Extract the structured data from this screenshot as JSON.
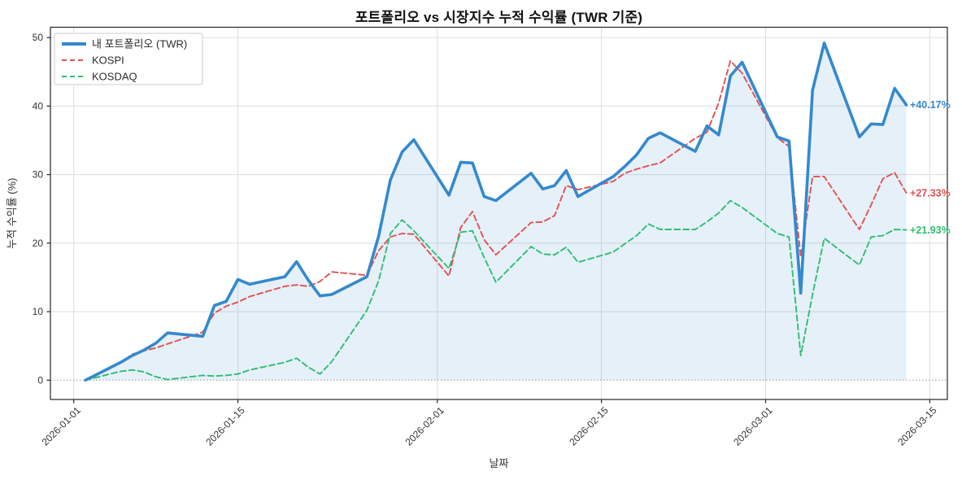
{
  "title": "포트폴리오 vs 시장지수 누적 수익률 (TWR 기준)",
  "chart_data": {
    "type": "line",
    "title": "포트폴리오 vs 시장지수 누적 수익률 (TWR 기준)",
    "xlabel": "날짜",
    "ylabel": "누적 수익률 (%)",
    "yticks": [
      0,
      10,
      20,
      30,
      40,
      50
    ],
    "ylim": [
      -2.8,
      51.5
    ],
    "xticks": [
      "2026-01-01",
      "2026-01-15",
      "2026-02-01",
      "2026-02-15",
      "2026-03-01",
      "2026-03-15"
    ],
    "grid": true,
    "zero_line_dotted": true,
    "legend_position": "upper-left",
    "x": [
      "2026-01-02",
      "2026-01-05",
      "2026-01-06",
      "2026-01-07",
      "2026-01-08",
      "2026-01-09",
      "2026-01-12",
      "2026-01-13",
      "2026-01-14",
      "2026-01-15",
      "2026-01-16",
      "2026-01-19",
      "2026-01-20",
      "2026-01-21",
      "2026-01-22",
      "2026-01-23",
      "2026-01-26",
      "2026-01-27",
      "2026-01-28",
      "2026-01-29",
      "2026-01-30",
      "2026-02-02",
      "2026-02-03",
      "2026-02-04",
      "2026-02-05",
      "2026-02-06",
      "2026-02-09",
      "2026-02-10",
      "2026-02-11",
      "2026-02-12",
      "2026-02-13",
      "2026-02-16",
      "2026-02-17",
      "2026-02-18",
      "2026-02-19",
      "2026-02-20",
      "2026-02-23",
      "2026-02-24",
      "2026-02-25",
      "2026-02-26",
      "2026-02-27",
      "2026-03-02",
      "2026-03-03",
      "2026-03-04",
      "2026-03-05",
      "2026-03-06",
      "2026-03-09",
      "2026-03-10",
      "2026-03-11",
      "2026-03-12",
      "2026-03-13"
    ],
    "series": [
      {
        "name": "내 포트폴리오 (TWR)",
        "color": "#3489cd",
        "style": "solid",
        "width": 3.6,
        "area_fill": true,
        "fill_color": "rgba(52,137,205,0.13)",
        "final_label": "+40.17%",
        "values": [
          0.0,
          2.6,
          3.6,
          4.4,
          5.4,
          6.9,
          6.4,
          10.9,
          11.5,
          14.7,
          14.0,
          15.1,
          17.3,
          14.6,
          12.3,
          12.5,
          15.1,
          21.0,
          29.2,
          33.3,
          35.1,
          27.0,
          31.8,
          31.7,
          26.8,
          26.2,
          30.2,
          27.9,
          28.4,
          30.6,
          26.8,
          29.7,
          31.2,
          32.9,
          35.3,
          36.1,
          33.4,
          37.1,
          35.8,
          44.4,
          46.4,
          35.5,
          34.9,
          12.7,
          42.3,
          49.2,
          35.5,
          37.4,
          37.3,
          42.6,
          40.17
        ]
      },
      {
        "name": "KOSPI",
        "color": "#e25151",
        "style": "dashed",
        "width": 1.9,
        "area_fill": false,
        "final_label": "+27.33%",
        "values": [
          0.0,
          2.6,
          3.8,
          4.3,
          4.7,
          5.3,
          7.0,
          9.8,
          10.8,
          11.4,
          12.2,
          13.7,
          13.9,
          13.7,
          14.4,
          15.8,
          15.3,
          18.9,
          20.9,
          21.4,
          21.3,
          15.2,
          22.3,
          24.6,
          20.5,
          18.3,
          23.0,
          23.1,
          24.0,
          28.4,
          27.8,
          29.0,
          30.2,
          30.8,
          31.3,
          31.7,
          35.3,
          36.2,
          40.5,
          46.6,
          44.8,
          35.4,
          34.1,
          18.0,
          29.7,
          29.7,
          22.0,
          25.6,
          29.4,
          30.3,
          27.33
        ]
      },
      {
        "name": "KOSDAQ",
        "color": "#2fbe71",
        "style": "dashed",
        "width": 1.9,
        "area_fill": false,
        "final_label": "+21.93%",
        "values": [
          0.0,
          1.3,
          1.5,
          1.2,
          0.5,
          0.1,
          0.7,
          0.6,
          0.7,
          0.9,
          1.5,
          2.6,
          3.2,
          1.9,
          0.9,
          2.7,
          10.2,
          14.5,
          21.4,
          23.4,
          21.8,
          16.3,
          21.6,
          21.8,
          17.9,
          14.3,
          19.5,
          18.4,
          18.3,
          19.4,
          17.2,
          18.7,
          19.9,
          21.1,
          22.8,
          22.0,
          22.0,
          23.1,
          24.4,
          26.2,
          25.2,
          21.4,
          20.9,
          3.6,
          12.5,
          20.7,
          16.8,
          20.9,
          21.1,
          22.0,
          21.93
        ]
      }
    ]
  },
  "colors": {
    "grid": "#dedede",
    "zero_line": "#999999",
    "spine": "#262626",
    "tick_label": "#333333",
    "title": "#111111",
    "legend_border": "#cccccc",
    "legend_bg": "#ffffff"
  }
}
